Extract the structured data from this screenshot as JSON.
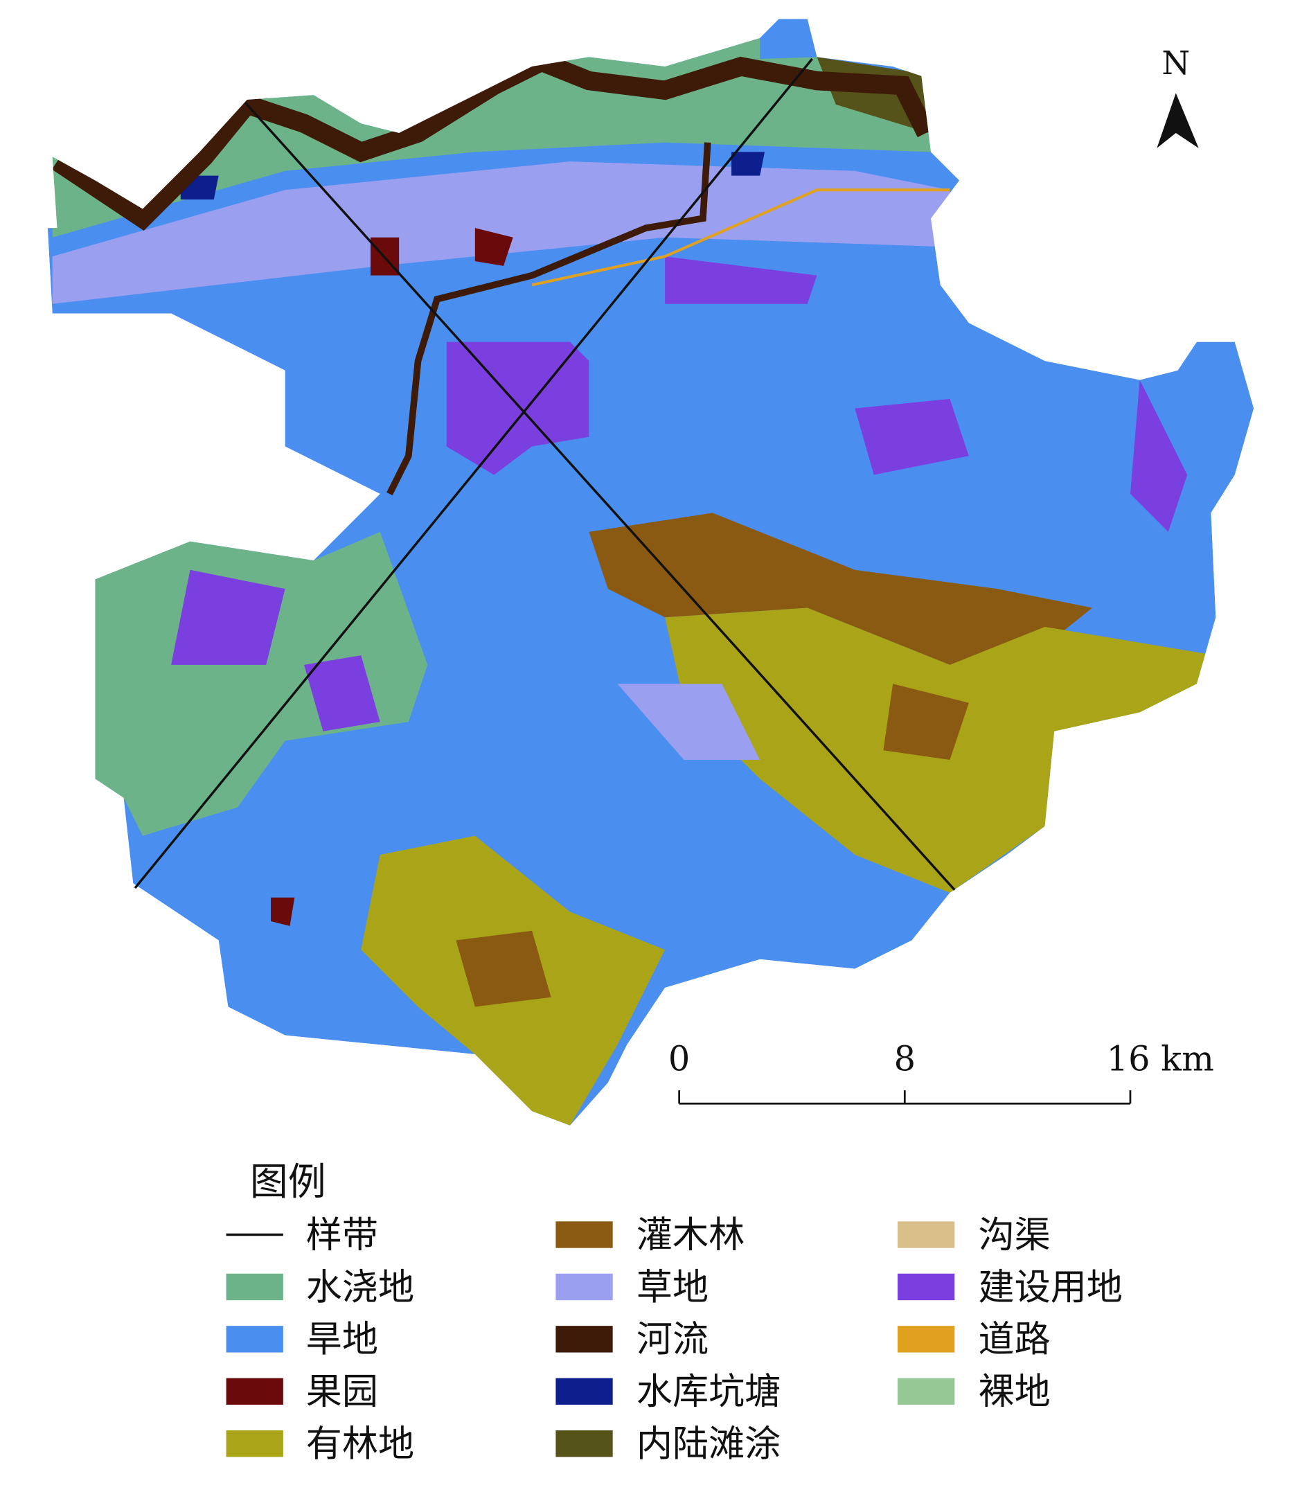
{
  "north_arrow": {
    "label": "N"
  },
  "scale_bar": {
    "max": 16,
    "ticks": [
      0,
      8,
      {
        "value": 16,
        "label": "16 km"
      }
    ]
  },
  "legend": {
    "title": "图例",
    "items": [
      {
        "label": "样带",
        "color": "#111111",
        "symbol": "line"
      },
      {
        "label": "水浇地",
        "color": "#6db38a"
      },
      {
        "label": "旱地",
        "color": "#4a8ff0"
      },
      {
        "label": "果园",
        "color": "#6b0a0a"
      },
      {
        "label": "有林地",
        "color": "#a9a418"
      },
      {
        "label": "灌木林",
        "color": "#8b5a12"
      },
      {
        "label": "草地",
        "color": "#9b9ff0"
      },
      {
        "label": "河流",
        "color": "#3e1a08"
      },
      {
        "label": "水库坑塘",
        "color": "#0d1f8c"
      },
      {
        "label": "内陆滩涂",
        "color": "#55521a"
      },
      {
        "label": "沟渠",
        "color": "#d9c08a"
      },
      {
        "label": "建设用地",
        "color": "#7b3fe0"
      },
      {
        "label": "道路",
        "color": "#e0a020"
      },
      {
        "label": "裸地",
        "color": "#95c895"
      }
    ]
  }
}
